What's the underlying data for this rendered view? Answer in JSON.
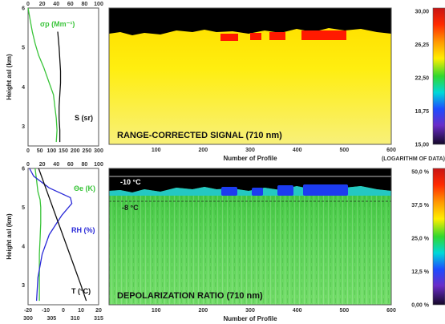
{
  "colors": {
    "green": "#3ac43a",
    "blue": "#2a2ad8",
    "black": "#111111",
    "background_sky": "#000000"
  },
  "chart_data": [
    {
      "type": "line",
      "panel": "top-left profile",
      "ylabel": "Height asl (km)",
      "ylim": [
        2.5,
        6
      ],
      "y_ticks": [
        "3",
        "4",
        "5",
        "6"
      ],
      "x_top_ticks": [
        "0",
        "20",
        "40",
        "60",
        "80",
        "100"
      ],
      "x_bottom_ticks": [
        "0",
        "50",
        "100",
        "150",
        "200",
        "250",
        "300"
      ],
      "series": [
        {
          "name": "σp (Mm⁻¹)",
          "color": "#3ac43a",
          "x": [
            0,
            3,
            6,
            10,
            15,
            22,
            30,
            36,
            38,
            40,
            41,
            40
          ],
          "y": [
            6.0,
            5.7,
            5.4,
            5.1,
            4.8,
            4.5,
            4.1,
            3.8,
            3.5,
            3.2,
            2.9,
            2.6
          ]
        },
        {
          "name": "S (sr)",
          "color": "#111111",
          "x": [
            42,
            44,
            45,
            46,
            46,
            45,
            44,
            44,
            45,
            45
          ],
          "y": [
            5.4,
            5.0,
            4.7,
            4.4,
            4.1,
            3.8,
            3.5,
            3.2,
            2.9,
            2.6
          ]
        }
      ],
      "labels": {
        "sigma": "σp (Mm⁻¹)",
        "s": "S (sr)"
      }
    },
    {
      "type": "heatmap",
      "panel": "top-right image",
      "title": "RANGE-CORRECTED SIGNAL (710 nm)",
      "xlabel": "Number of Profile",
      "x_ticks": [
        "100",
        "200",
        "300",
        "400",
        "500",
        "600"
      ],
      "xlim": [
        0,
        600
      ],
      "colorbar": {
        "ticks": [
          "30,00",
          "26,25",
          "22,50",
          "18,75",
          "15,00"
        ],
        "label": "(LOGARITHM OF DATA)"
      }
    },
    {
      "type": "line",
      "panel": "bottom-left profile",
      "ylabel": "Height asl (km)",
      "ylim": [
        2.5,
        6
      ],
      "y_ticks": [
        "3",
        "4",
        "5",
        "6"
      ],
      "x_top_ticks": [
        "0",
        "20",
        "40",
        "60",
        "80",
        "100"
      ],
      "x_bottom_ticks": [
        "-20",
        "-10",
        "0",
        "10",
        "20"
      ],
      "x_bottom2_ticks": [
        "300",
        "305",
        "310",
        "315"
      ],
      "series": [
        {
          "name": "Θe (K)",
          "color": "#3ac43a",
          "x": [
            10,
            12,
            14,
            17,
            18,
            18,
            17,
            16,
            16,
            16
          ],
          "y": [
            6.0,
            5.7,
            5.4,
            5.2,
            5.0,
            4.6,
            4.2,
            3.8,
            3.3,
            2.6
          ]
        },
        {
          "name": "RH (%)",
          "color": "#2a2ad8",
          "x": [
            2,
            8,
            30,
            60,
            62,
            48,
            30,
            20,
            14,
            12
          ],
          "y": [
            6.0,
            5.8,
            5.5,
            5.25,
            5.1,
            4.8,
            4.3,
            3.8,
            3.2,
            2.6
          ]
        },
        {
          "name": "T (°C)",
          "color": "#111111",
          "x": [
            -14,
            -10,
            -6,
            -2,
            2,
            6,
            10,
            13
          ],
          "y": [
            6.0,
            5.5,
            5.0,
            4.5,
            4.0,
            3.5,
            3.0,
            2.6
          ]
        }
      ],
      "labels": {
        "theta": "Θe (K)",
        "rh": "RH (%)",
        "t": "T (°C)"
      }
    },
    {
      "type": "heatmap",
      "panel": "bottom-right image",
      "title": "DEPOLARIZATION RATIO (710 nm)",
      "xlabel": "Number of Profile",
      "x_ticks": [
        "100",
        "200",
        "300",
        "400",
        "500",
        "600"
      ],
      "xlim": [
        0,
        600
      ],
      "annotations": [
        "-10 °C",
        "-8 °C"
      ],
      "colorbar": {
        "ticks": [
          "50,0 %",
          "37,5 %",
          "25,0 %",
          "12,5 %",
          "0,00 %"
        ]
      }
    }
  ]
}
